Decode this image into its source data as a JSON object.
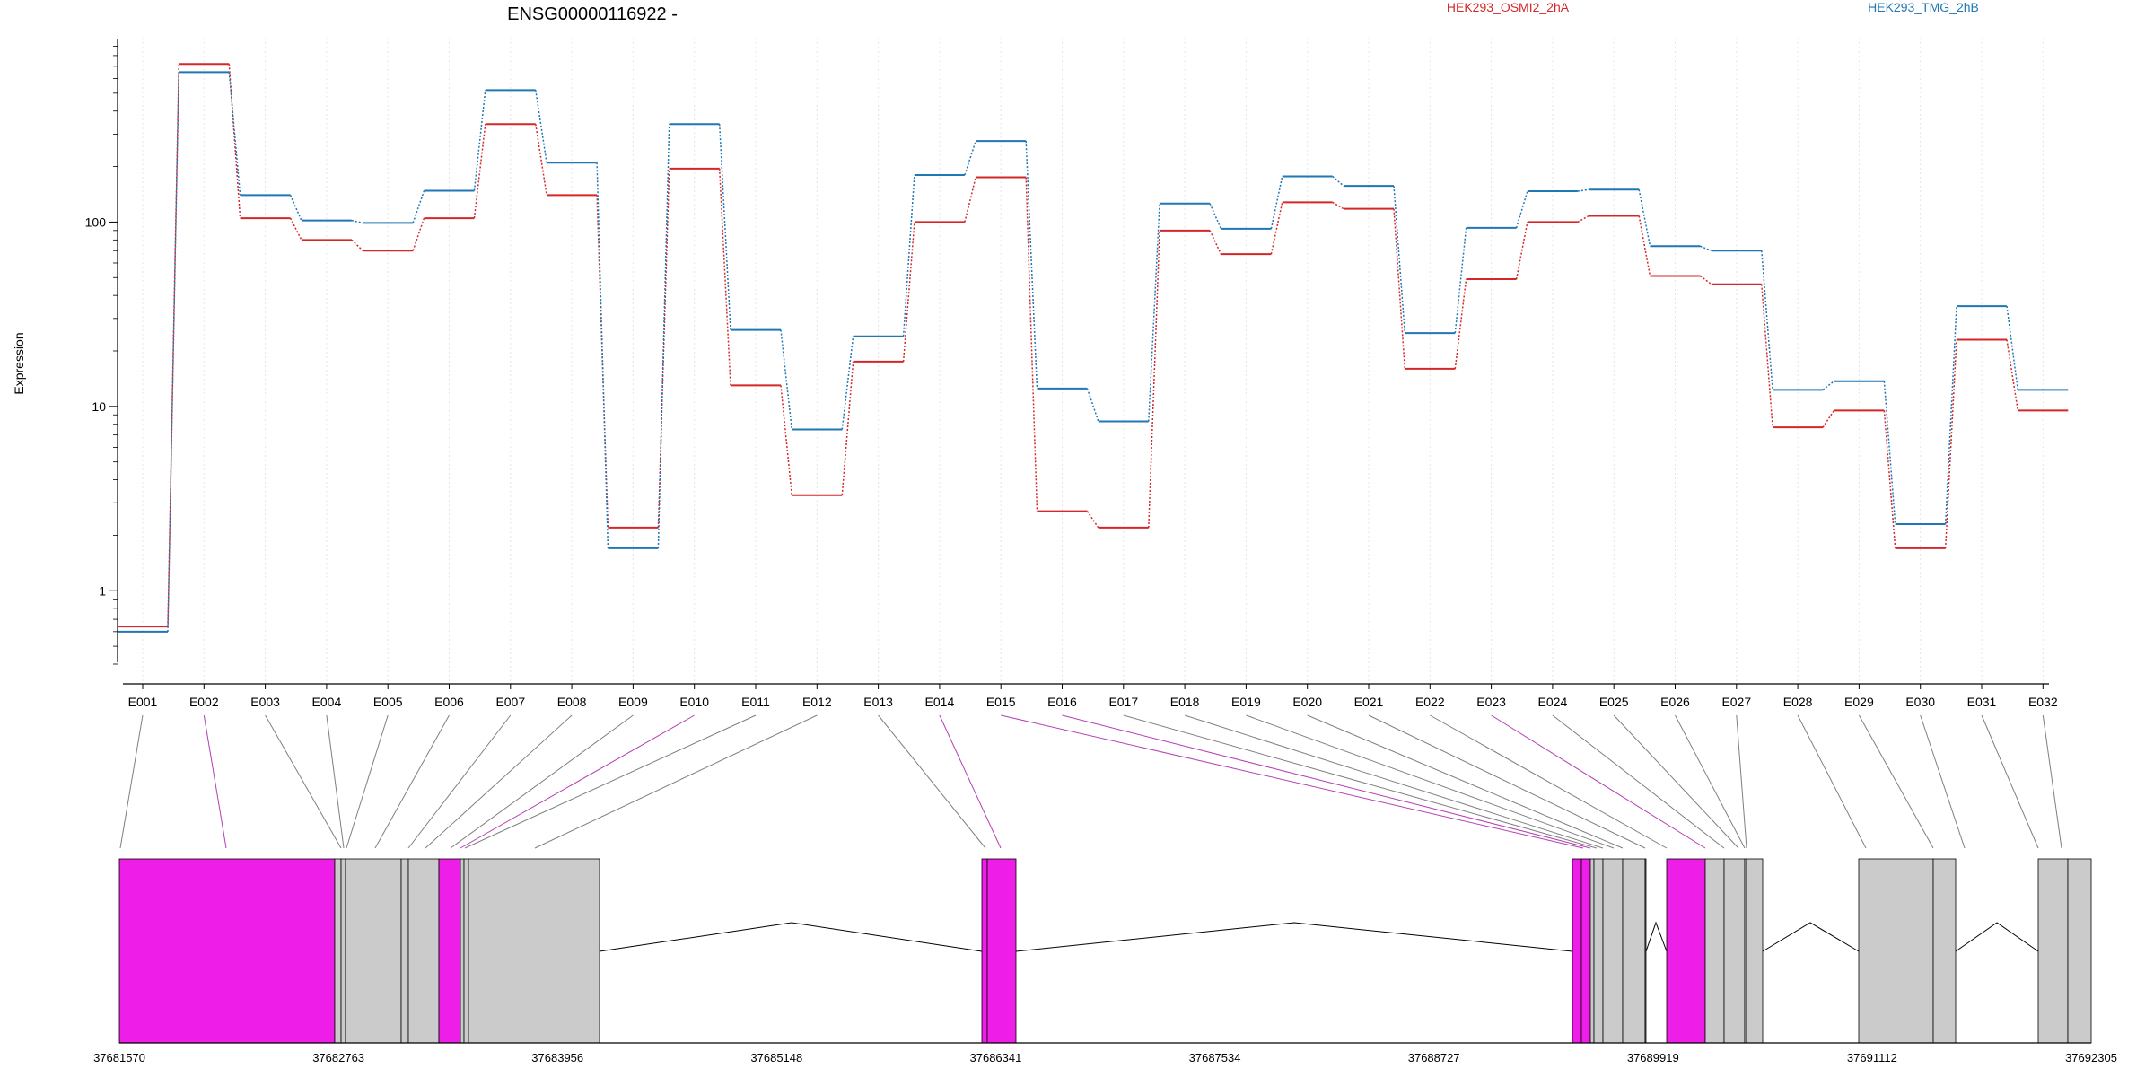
{
  "chart_data": {
    "type": "line",
    "title": "ENSG00000116922 -",
    "ylabel": "Expression",
    "xlabel": "",
    "y_scale": "log",
    "ylim": [
      0.4,
      1000
    ],
    "yticks": [
      "1",
      "10",
      "100"
    ],
    "grid": "vertical-dotted",
    "legend_placement": "top",
    "categories": [
      "E001",
      "E002",
      "E003",
      "E004",
      "E005",
      "E006",
      "E007",
      "E008",
      "E009",
      "E010",
      "E011",
      "E012",
      "E013",
      "E014",
      "E015",
      "E016",
      "E017",
      "E018",
      "E019",
      "E020",
      "E021",
      "E022",
      "E023",
      "E024",
      "E025",
      "E026",
      "E027",
      "E028",
      "E029",
      "E030",
      "E031",
      "E032"
    ],
    "series": [
      {
        "name": "HEK293_OSMI2_2hA",
        "color": "#d62728",
        "values": [
          0.64,
          720,
          105,
          80,
          70,
          105,
          340,
          140,
          2.2,
          195,
          13,
          3.3,
          17.5,
          100,
          175,
          2.7,
          2.2,
          90,
          67,
          128,
          118,
          16,
          49,
          100,
          108,
          51,
          46,
          7.7,
          9.5,
          1.7,
          23,
          9.5
        ]
      },
      {
        "name": "HEK293_TMG_2hB",
        "color": "#1f77b4",
        "values": [
          0.6,
          650,
          140,
          102,
          99,
          148,
          520,
          210,
          1.7,
          340,
          26,
          7.5,
          24,
          180,
          275,
          12.5,
          8.3,
          126,
          92,
          177,
          157,
          25,
          93,
          147,
          150,
          74,
          70,
          12.3,
          13.7,
          2.3,
          35,
          12.3
        ]
      }
    ],
    "exon_color_highlight": "#ee1ee8",
    "exon_color_normal": "#cbcbcb",
    "genomic_axis_labels": [
      "37681570",
      "37682763",
      "37683956",
      "37685148",
      "37686341",
      "37687534",
      "37688727",
      "37689919",
      "37691112",
      "37692305"
    ]
  }
}
